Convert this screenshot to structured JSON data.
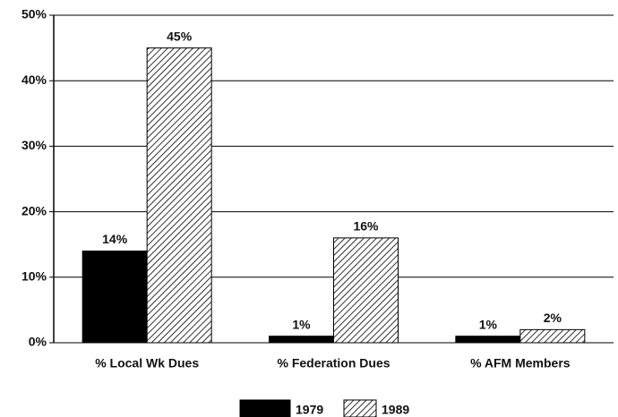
{
  "chart_data": {
    "type": "bar",
    "categories": [
      "% Local Wk Dues",
      "% Federation Dues",
      "% AFM Members"
    ],
    "series": [
      {
        "name": "1979",
        "color": "#000000",
        "values": [
          14,
          1,
          1
        ],
        "value_labels": [
          "14%",
          "1%",
          "1%"
        ]
      },
      {
        "name": "1989",
        "color": "#000000",
        "hatch": true,
        "values": [
          45,
          16,
          2
        ],
        "value_labels": [
          "45%",
          "16%",
          "2%"
        ]
      }
    ],
    "ylim": [
      0,
      50
    ],
    "yticks": [
      {
        "value": 0,
        "label": "0%"
      },
      {
        "value": 10,
        "label": "10%"
      },
      {
        "value": 20,
        "label": "20%"
      },
      {
        "value": 30,
        "label": "30%"
      },
      {
        "value": 40,
        "label": "40%"
      },
      {
        "value": 50,
        "label": "50%"
      }
    ],
    "grid": true,
    "legend": "bottom"
  }
}
